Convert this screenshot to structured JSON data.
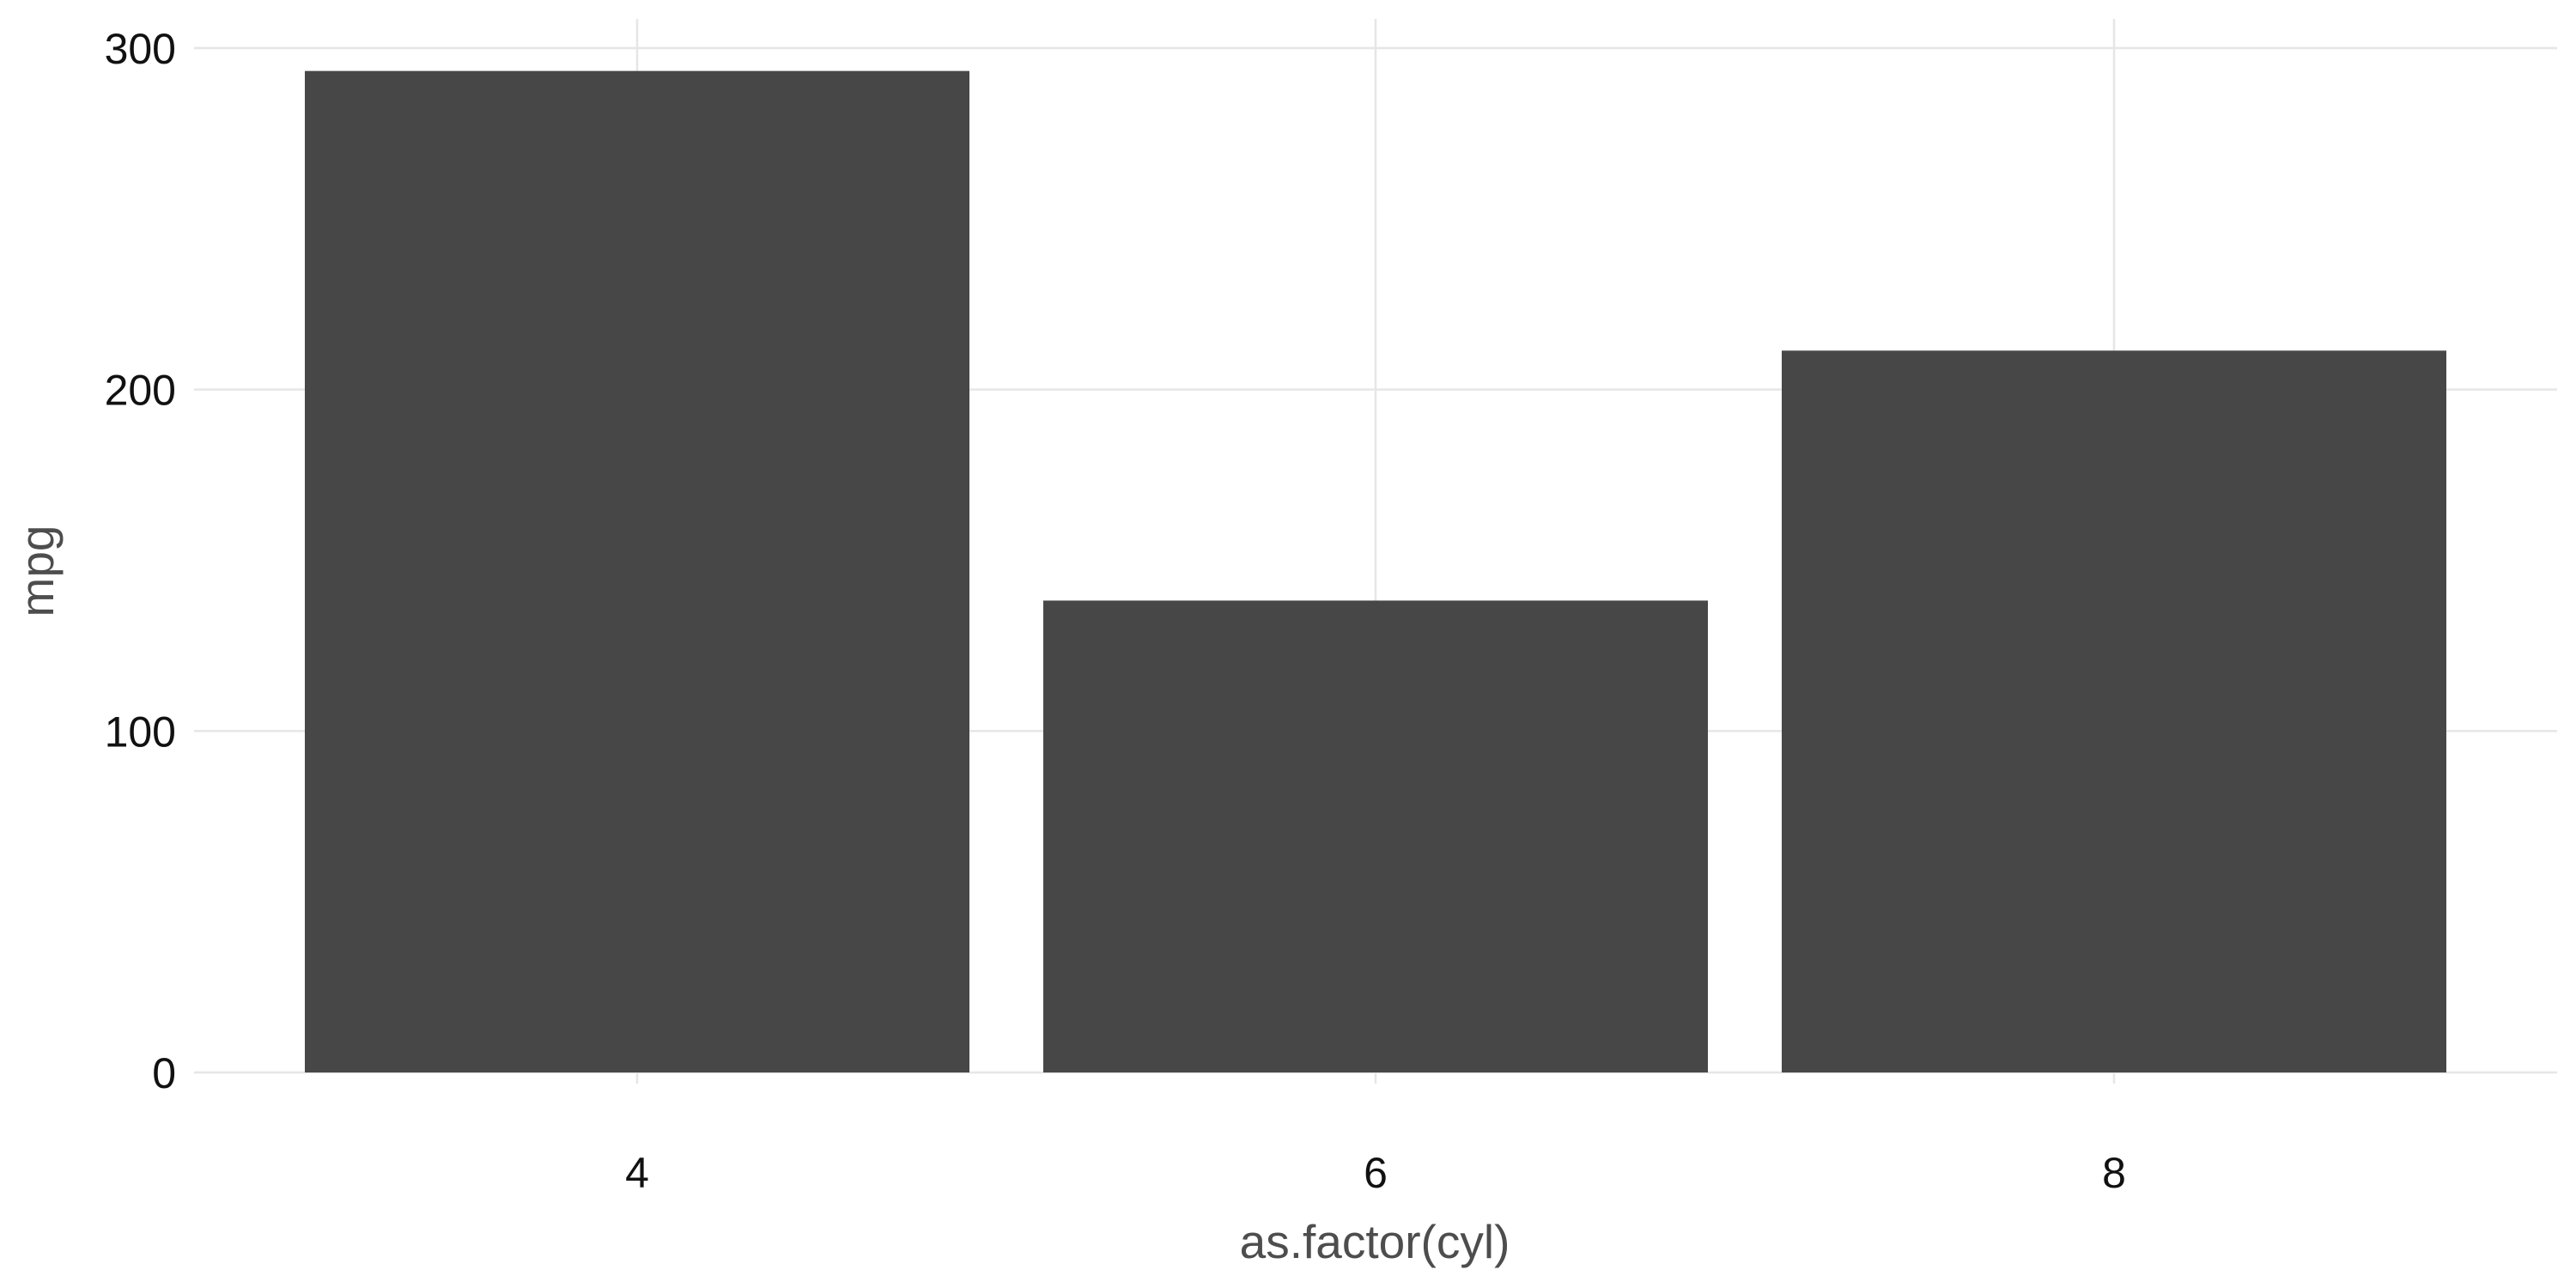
{
  "chart_data": {
    "type": "bar",
    "categories": [
      "4",
      "6",
      "8"
    ],
    "values": [
      293.3,
      138.2,
      211.4
    ],
    "title": "",
    "xlabel": "as.factor(cyl)",
    "ylabel": "mpg",
    "ylim": [
      0,
      300
    ],
    "yticks": [
      0,
      100,
      200,
      300
    ],
    "grid": true,
    "legend": "none",
    "bar_color": "#474747",
    "grid_color": "#e6e6e6",
    "background_color": "#ffffff"
  }
}
